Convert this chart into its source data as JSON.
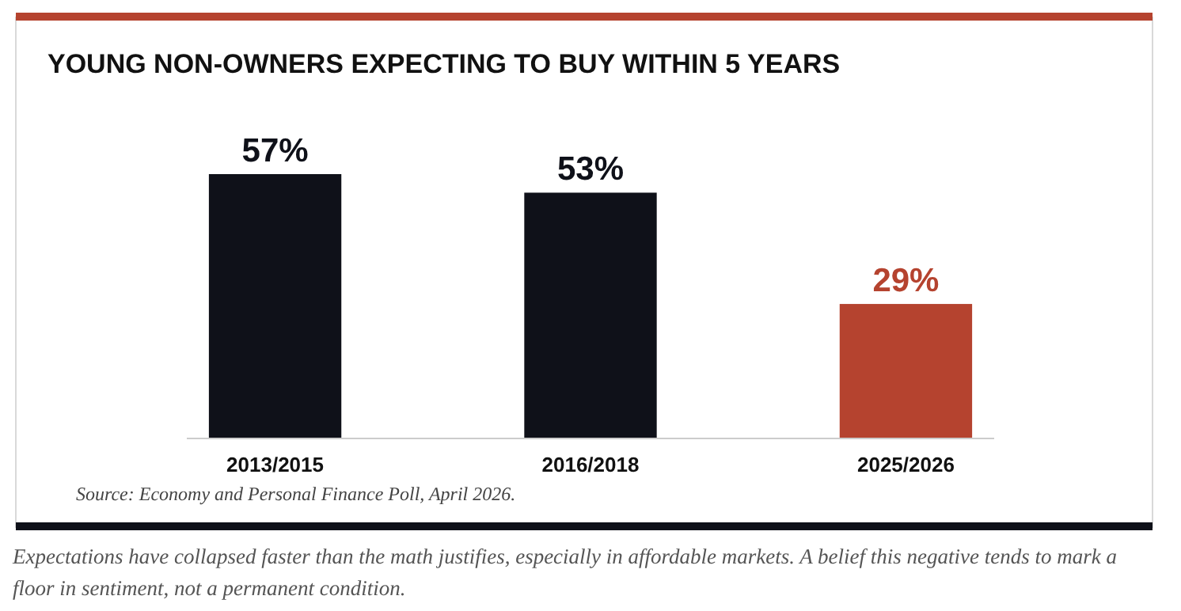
{
  "chart_data": {
    "type": "bar",
    "title": "YOUNG NON-OWNERS EXPECTING TO BUY WITHIN 5 YEARS",
    "categories": [
      "2013/2015",
      "2016/2018",
      "2025/2026"
    ],
    "values": [
      57,
      53,
      29
    ],
    "colors": [
      "#0f1119",
      "#0f1119",
      "#b5432f"
    ],
    "value_labels": [
      "57%",
      "53%",
      "29%"
    ],
    "annotations": [
      "Source: Economy and Personal Finance Poll, April 2026.",
      "Expectations have collapsed faster than the math justifies, especially in affordable markets. A belief this negative tends to mark a floor in sentiment, not a permanent condition."
    ]
  }
}
